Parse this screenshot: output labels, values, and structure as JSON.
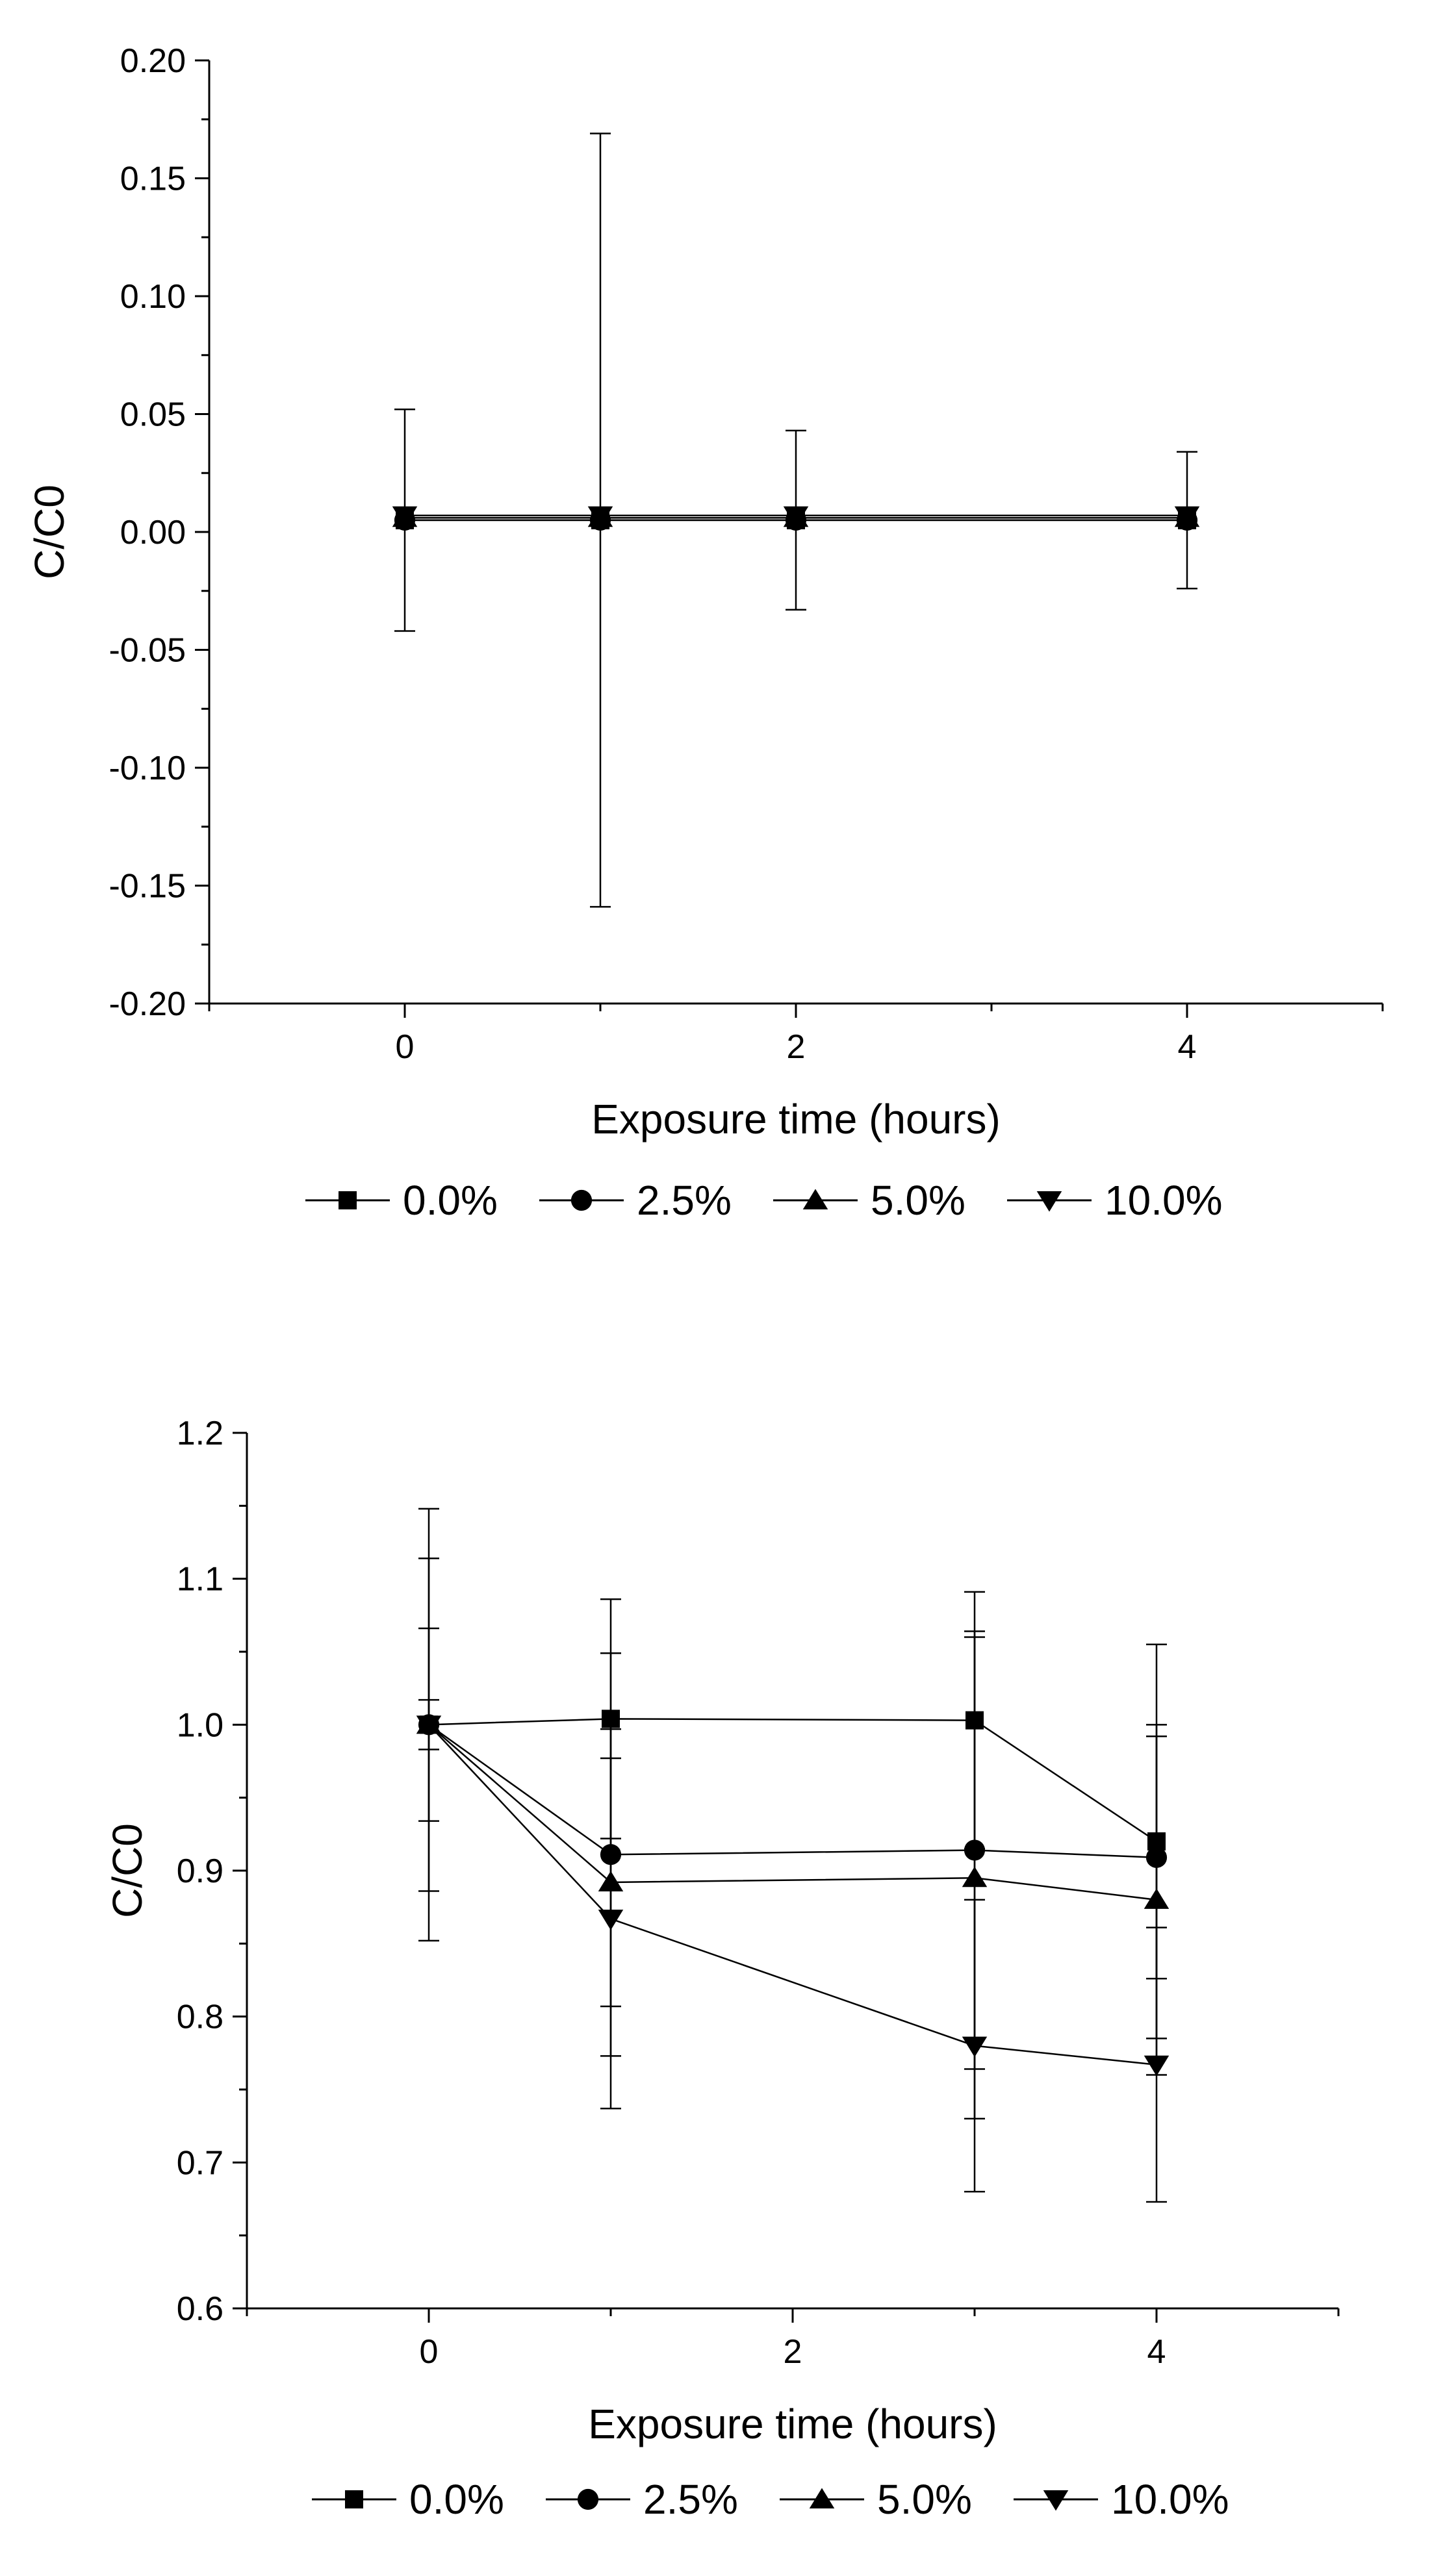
{
  "chart_data": [
    {
      "type": "line",
      "title": "",
      "xlabel": "Exposure time (hours)",
      "ylabel": "C/C0",
      "xlim": [
        -1,
        5
      ],
      "ylim": [
        -0.2,
        0.2
      ],
      "xticks": [
        0,
        2,
        4
      ],
      "yticks": [
        -0.2,
        -0.15,
        -0.1,
        -0.05,
        0.0,
        0.05,
        0.1,
        0.15,
        0.2
      ],
      "ytick_labels": [
        "-0.20",
        "-0.15",
        "-0.10",
        "-0.05",
        "0.00",
        "0.05",
        "0.10",
        "0.15",
        "0.20"
      ],
      "legend_position": "bottom",
      "series": [
        {
          "name": "0.0%",
          "marker": "square",
          "x": [
            0,
            1,
            2,
            4
          ],
          "values": [
            0.005,
            0.005,
            0.005,
            0.005
          ],
          "errors": [
            0.047,
            0.164,
            0.038,
            0.029
          ]
        },
        {
          "name": "2.5%",
          "marker": "circle",
          "x": [
            0,
            1,
            2,
            4
          ],
          "values": [
            0.005,
            0.005,
            0.005,
            0.005
          ],
          "errors": [
            0,
            0,
            0,
            0
          ]
        },
        {
          "name": "5.0%",
          "marker": "triangle-up",
          "x": [
            0,
            1,
            2,
            4
          ],
          "values": [
            0.006,
            0.006,
            0.006,
            0.006
          ],
          "errors": [
            0,
            0,
            0,
            0
          ]
        },
        {
          "name": "10.0%",
          "marker": "triangle-down",
          "x": [
            0,
            1,
            2,
            4
          ],
          "values": [
            0.007,
            0.007,
            0.007,
            0.007
          ],
          "errors": [
            0,
            0,
            0,
            0
          ]
        }
      ]
    },
    {
      "type": "line",
      "title": "",
      "xlabel": "Exposure time (hours)",
      "ylabel": "C/C0",
      "xlim": [
        -1,
        5
      ],
      "ylim": [
        0.6,
        1.2
      ],
      "xticks": [
        0,
        2,
        4
      ],
      "yticks": [
        0.6,
        0.7,
        0.8,
        0.9,
        1.0,
        1.1,
        1.2
      ],
      "ytick_labels": [
        "0.6",
        "0.7",
        "0.8",
        "0.9",
        "1.0",
        "1.1",
        "1.2"
      ],
      "legend_position": "bottom",
      "series": [
        {
          "name": "0.0%",
          "marker": "square",
          "x": [
            0,
            1,
            3,
            4
          ],
          "values": [
            1.0,
            1.004,
            1.003,
            0.92
          ],
          "errors": [
            0.148,
            0.082,
            0.088,
            0.135
          ]
        },
        {
          "name": "2.5%",
          "marker": "circle",
          "x": [
            0,
            1,
            3,
            4
          ],
          "values": [
            1.0,
            0.911,
            0.914,
            0.909
          ],
          "errors": [
            0.114,
            0.138,
            0.15,
            0.083
          ]
        },
        {
          "name": "5.0%",
          "marker": "triangle-up",
          "x": [
            0,
            1,
            3,
            4
          ],
          "values": [
            1.0,
            0.892,
            0.895,
            0.88
          ],
          "errors": [
            0.066,
            0.085,
            0.165,
            0.12
          ]
        },
        {
          "name": "10.0%",
          "marker": "triangle-down",
          "x": [
            0,
            1,
            3,
            4
          ],
          "values": [
            1.0,
            0.867,
            0.78,
            0.767
          ],
          "errors": [
            0.017,
            0.13,
            0.1,
            0.094
          ]
        }
      ]
    }
  ]
}
